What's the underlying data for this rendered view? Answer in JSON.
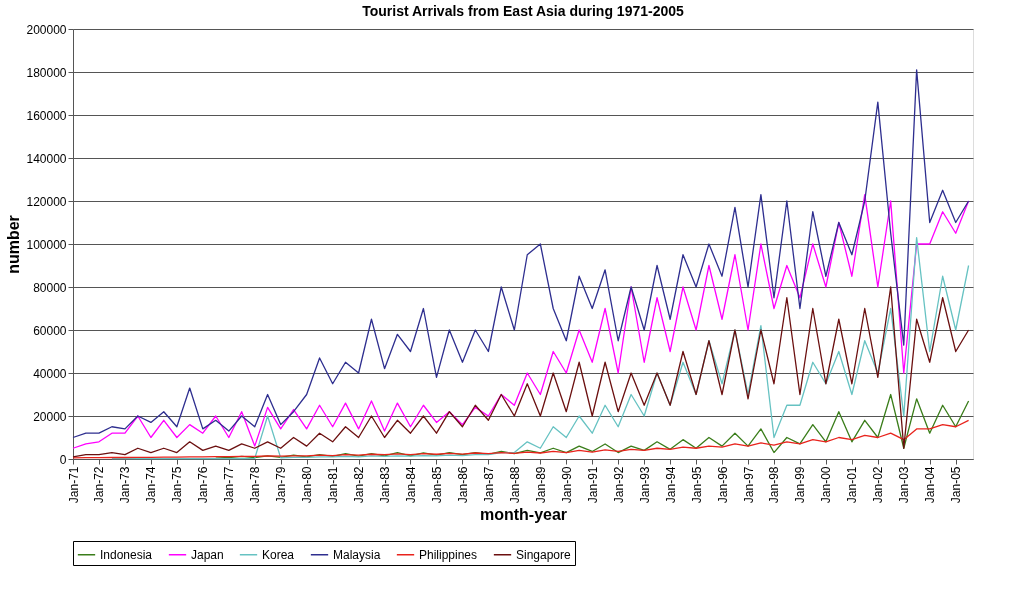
{
  "chart_data": {
    "type": "line",
    "title": "Tourist Arrivals from East Asia during 1971-2005",
    "xlabel": "month-year",
    "ylabel": "number",
    "x": [
      "1971-01",
      "1971-07",
      "1972-01",
      "1972-07",
      "1973-01",
      "1973-07",
      "1974-01",
      "1974-07",
      "1975-01",
      "1975-07",
      "1976-01",
      "1976-07",
      "1977-01",
      "1977-07",
      "1978-01",
      "1978-07",
      "1979-01",
      "1979-07",
      "1980-01",
      "1980-07",
      "1981-01",
      "1981-07",
      "1982-01",
      "1982-07",
      "1983-01",
      "1983-07",
      "1984-01",
      "1984-07",
      "1985-01",
      "1985-07",
      "1986-01",
      "1986-07",
      "1987-01",
      "1987-07",
      "1988-01",
      "1988-07",
      "1989-01",
      "1989-07",
      "1990-01",
      "1990-07",
      "1991-01",
      "1991-07",
      "1992-01",
      "1992-07",
      "1993-01",
      "1993-07",
      "1994-01",
      "1994-07",
      "1995-01",
      "1995-07",
      "1996-01",
      "1996-07",
      "1997-01",
      "1997-07",
      "1998-01",
      "1998-07",
      "1999-01",
      "1999-07",
      "2000-01",
      "2000-07",
      "2001-01",
      "2001-07",
      "2002-01",
      "2002-07",
      "2003-01",
      "2003-07",
      "2004-01",
      "2004-07",
      "2005-01",
      "2005-07"
    ],
    "series": [
      {
        "name": "Indonesia",
        "color": "#3a7d1a",
        "values": [
          null,
          null,
          null,
          null,
          null,
          null,
          null,
          null,
          null,
          null,
          null,
          1000,
          600,
          1200,
          700,
          1500,
          800,
          1800,
          1000,
          2000,
          1200,
          2500,
          1300,
          2500,
          1500,
          3000,
          1500,
          2800,
          1800,
          3000,
          2000,
          3000,
          2200,
          3500,
          2500,
          4000,
          2800,
          5000,
          3000,
          6000,
          3500,
          7000,
          3000,
          6000,
          4000,
          8000,
          4500,
          9000,
          5000,
          10000,
          6000,
          12000,
          6000,
          14000,
          3000,
          10000,
          7000,
          16000,
          8000,
          22000,
          8000,
          18000,
          10000,
          30000,
          5000,
          28000,
          12000,
          25000,
          15000,
          27000
        ]
      },
      {
        "name": "Japan",
        "color": "#ff00ff",
        "values": [
          5000,
          7000,
          8000,
          12000,
          12000,
          20000,
          10000,
          18000,
          10000,
          16000,
          12000,
          20000,
          10000,
          22000,
          6000,
          24000,
          14000,
          23000,
          14000,
          25000,
          15000,
          26000,
          14000,
          27000,
          13000,
          26000,
          15000,
          25000,
          17000,
          22000,
          16000,
          24000,
          20000,
          30000,
          25000,
          40000,
          30000,
          50000,
          40000,
          60000,
          45000,
          70000,
          40000,
          80000,
          45000,
          75000,
          50000,
          80000,
          60000,
          90000,
          65000,
          95000,
          60000,
          100000,
          70000,
          90000,
          75000,
          100000,
          80000,
          110000,
          85000,
          123000,
          80000,
          120000,
          40000,
          100000,
          100000,
          115000,
          105000,
          120000
        ]
      },
      {
        "name": "Korea",
        "color": "#66c2c2",
        "values": [
          null,
          null,
          null,
          200,
          200,
          200,
          200,
          200,
          200,
          200,
          200,
          200,
          200,
          200,
          300,
          20000,
          500,
          800,
          800,
          1000,
          1000,
          1200,
          1000,
          1500,
          1200,
          1500,
          1300,
          1600,
          1500,
          1800,
          1600,
          2000,
          2000,
          3000,
          3000,
          8000,
          5000,
          15000,
          10000,
          20000,
          12000,
          25000,
          15000,
          30000,
          20000,
          40000,
          25000,
          45000,
          30000,
          55000,
          35000,
          60000,
          30000,
          62000,
          10000,
          25000,
          25000,
          45000,
          35000,
          50000,
          30000,
          55000,
          40000,
          70000,
          20000,
          103000,
          50000,
          85000,
          60000,
          90000
        ]
      },
      {
        "name": "Malaysia",
        "color": "#2e2e8f",
        "values": [
          10000,
          12000,
          12000,
          15000,
          14000,
          20000,
          17000,
          22000,
          15000,
          33000,
          14000,
          18000,
          13000,
          20000,
          15000,
          30000,
          16000,
          22000,
          30000,
          47000,
          35000,
          45000,
          40000,
          65000,
          42000,
          58000,
          50000,
          70000,
          38000,
          60000,
          45000,
          60000,
          50000,
          80000,
          60000,
          95000,
          100000,
          70000,
          55000,
          85000,
          70000,
          88000,
          55000,
          80000,
          60000,
          90000,
          65000,
          95000,
          80000,
          100000,
          85000,
          117000,
          80000,
          123000,
          75000,
          120000,
          70000,
          115000,
          85000,
          110000,
          95000,
          120000,
          166000,
          105000,
          53000,
          181000,
          110000,
          125000,
          110000,
          120000
        ]
      },
      {
        "name": "Philippines",
        "color": "#e8231c",
        "values": [
          500,
          600,
          600,
          700,
          700,
          800,
          800,
          900,
          900,
          1000,
          1000,
          1100,
          1100,
          1200,
          1200,
          1400,
          1300,
          1500,
          1500,
          1800,
          1600,
          2000,
          1800,
          2200,
          2000,
          2400,
          2000,
          2500,
          2200,
          2600,
          2300,
          2800,
          2500,
          3000,
          2600,
          3200,
          2800,
          3500,
          3000,
          4000,
          3200,
          4200,
          3500,
          4500,
          4000,
          5000,
          4500,
          5500,
          5000,
          6000,
          5500,
          7000,
          6000,
          7500,
          6500,
          8000,
          7000,
          9000,
          8000,
          10000,
          9000,
          11000,
          10000,
          12000,
          9000,
          14000,
          14000,
          16000,
          15000,
          18000
        ]
      },
      {
        "name": "Singapore",
        "color": "#6b0f0f",
        "values": [
          1000,
          2000,
          2000,
          3000,
          2000,
          5000,
          3000,
          5000,
          3000,
          8000,
          4000,
          6000,
          4000,
          7000,
          5000,
          8000,
          5000,
          10000,
          6000,
          12000,
          8000,
          15000,
          10000,
          20000,
          10000,
          18000,
          12000,
          20000,
          12000,
          22000,
          15000,
          25000,
          18000,
          30000,
          20000,
          35000,
          20000,
          40000,
          22000,
          45000,
          20000,
          45000,
          22000,
          40000,
          25000,
          40000,
          25000,
          50000,
          30000,
          55000,
          30000,
          60000,
          28000,
          60000,
          35000,
          75000,
          30000,
          70000,
          35000,
          65000,
          35000,
          70000,
          38000,
          80000,
          5000,
          65000,
          45000,
          75000,
          50000,
          60000
        ]
      }
    ],
    "xlim": [
      "1971-01",
      "2005-09"
    ],
    "xticks": [
      {
        "value": "1971-01",
        "label": "Jan-71"
      },
      {
        "value": "1972-01",
        "label": "Jan-72"
      },
      {
        "value": "1973-01",
        "label": "Jan-73"
      },
      {
        "value": "1974-01",
        "label": "Jan-74"
      },
      {
        "value": "1975-01",
        "label": "Jan-75"
      },
      {
        "value": "1976-01",
        "label": "Jan-76"
      },
      {
        "value": "1977-01",
        "label": "Jan-77"
      },
      {
        "value": "1978-01",
        "label": "Jan-78"
      },
      {
        "value": "1979-01",
        "label": "Jan-79"
      },
      {
        "value": "1980-01",
        "label": "Jan-80"
      },
      {
        "value": "1981-01",
        "label": "Jan-81"
      },
      {
        "value": "1982-01",
        "label": "Jan-82"
      },
      {
        "value": "1983-01",
        "label": "Jan-83"
      },
      {
        "value": "1984-01",
        "label": "Jan-84"
      },
      {
        "value": "1985-01",
        "label": "Jan-85"
      },
      {
        "value": "1986-01",
        "label": "Jan-86"
      },
      {
        "value": "1987-01",
        "label": "Jan-87"
      },
      {
        "value": "1988-01",
        "label": "Jan-88"
      },
      {
        "value": "1989-01",
        "label": "Jan-89"
      },
      {
        "value": "1990-01",
        "label": "Jan-90"
      },
      {
        "value": "1991-01",
        "label": "Jan-91"
      },
      {
        "value": "1992-01",
        "label": "Jan-92"
      },
      {
        "value": "1993-01",
        "label": "Jan-93"
      },
      {
        "value": "1994-01",
        "label": "Jan-94"
      },
      {
        "value": "1995-01",
        "label": "Jan-95"
      },
      {
        "value": "1996-01",
        "label": "Jan-96"
      },
      {
        "value": "1997-01",
        "label": "Jan-97"
      },
      {
        "value": "1998-01",
        "label": "Jan-98"
      },
      {
        "value": "1999-01",
        "label": "Jan-99"
      },
      {
        "value": "2000-01",
        "label": "Jan-00"
      },
      {
        "value": "2001-01",
        "label": "Jan-01"
      },
      {
        "value": "2002-01",
        "label": "Jan-02"
      },
      {
        "value": "2003-01",
        "label": "Jan-03"
      },
      {
        "value": "2004-01",
        "label": "Jan-04"
      },
      {
        "value": "2005-01",
        "label": "Jan-05"
      }
    ],
    "ylim": [
      0,
      200000
    ],
    "yticks": [
      0,
      20000,
      40000,
      60000,
      80000,
      100000,
      120000,
      140000,
      160000,
      180000,
      200000
    ],
    "grid": "y",
    "legend": "bottom"
  }
}
